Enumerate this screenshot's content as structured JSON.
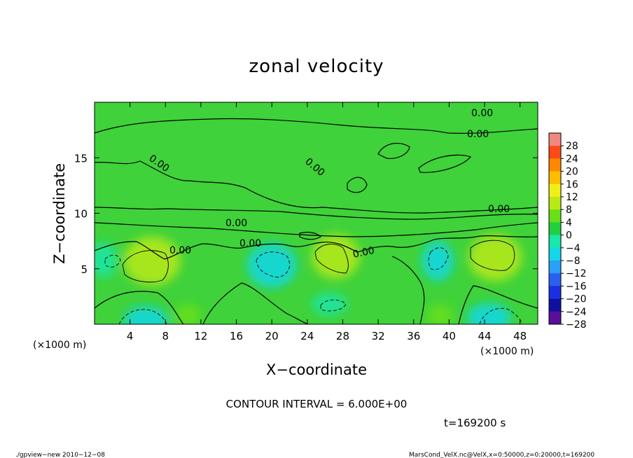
{
  "chart_data": {
    "type": "heatmap",
    "title": "zonal velocity",
    "xlabel": "X−coordinate",
    "ylabel": "Z−coordinate",
    "x_unit": "(×1000 m)",
    "y_unit": "(×1000 m)",
    "xlim": [
      0,
      50
    ],
    "ylim": [
      0,
      20
    ],
    "x_ticks": [
      4,
      8,
      12,
      16,
      20,
      24,
      28,
      32,
      36,
      40,
      44,
      48
    ],
    "y_ticks": [
      5,
      10,
      15
    ],
    "colorbar_ticks": [
      "28",
      "24",
      "20",
      "16",
      "12",
      "8",
      "4",
      "0",
      "−4",
      "−8",
      "−12",
      "−16",
      "−20",
      "−24",
      "−28"
    ],
    "contour_label": "0.00",
    "contour_interval_text": "CONTOUR INTERVAL = 6.000E+00",
    "time_text": "t=169200 s",
    "blobs": [
      {
        "x": 6.5,
        "z": 5.7,
        "rx": 3.2,
        "rz": 2.2,
        "value": 6
      },
      {
        "x": 27.2,
        "z": 6.1,
        "rx": 2.7,
        "rz": 2.0,
        "value": 6
      },
      {
        "x": 45.2,
        "z": 6.0,
        "rx": 3.0,
        "rz": 2.1,
        "value": 7
      },
      {
        "x": 20.0,
        "z": 5.3,
        "rx": 2.8,
        "rz": 2.0,
        "value": -8
      },
      {
        "x": 38.7,
        "z": 5.7,
        "rx": 1.8,
        "rz": 1.8,
        "value": -7
      },
      {
        "x": 1.0,
        "z": 5.8,
        "rx": 1.5,
        "rz": 1.6,
        "value": -6
      },
      {
        "x": 5.8,
        "z": 0.4,
        "rx": 2.5,
        "rz": 1.2,
        "value": -10
      },
      {
        "x": 44.5,
        "z": 0.6,
        "rx": 2.5,
        "rz": 1.3,
        "value": -9
      },
      {
        "x": 26.5,
        "z": 1.8,
        "rx": 2.0,
        "rz": 1.0,
        "value": -5
      },
      {
        "x": 10.5,
        "z": 0.8,
        "rx": 1.5,
        "rz": 1.0,
        "value": 5
      },
      {
        "x": 39.0,
        "z": 0.8,
        "rx": 1.5,
        "rz": 1.0,
        "value": 5
      }
    ]
  },
  "footer": {
    "left": "./gpview−new  2010−12−08",
    "right": "MarsCond_VelX.nc@VelX,x=0:50000,z=0:20000,t=169200"
  }
}
